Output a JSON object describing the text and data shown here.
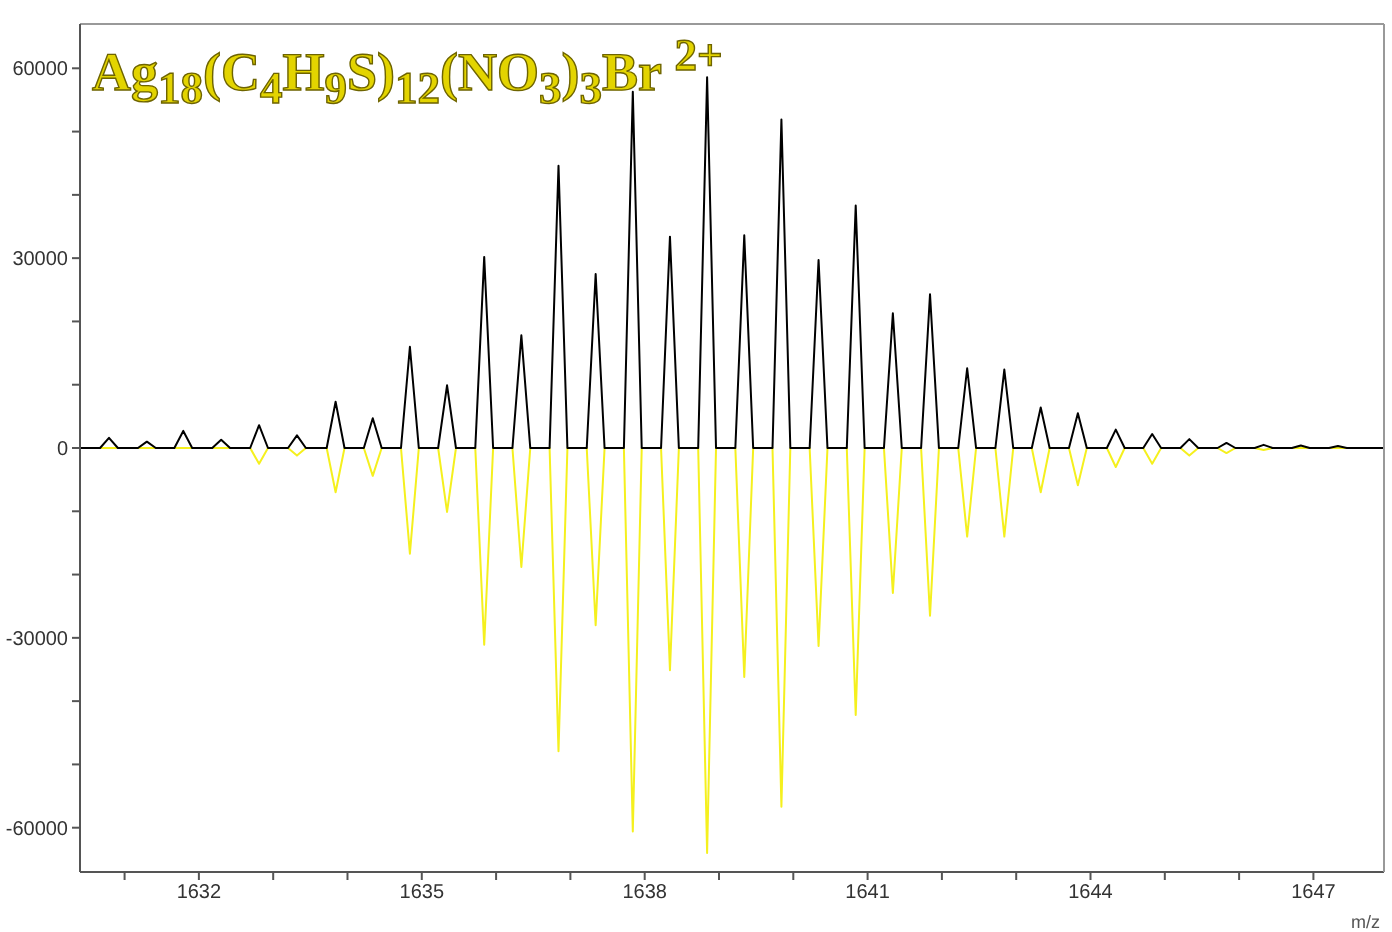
{
  "chart_data": {
    "type": "line",
    "title": "Ag$_{18}$(C$_{4}$H$_{9}$S)$_{12}$(NO$_{3}$)$_{3}$Br $^{2+}$",
    "xlabel": "m/z",
    "marker": "none",
    "xlim": [
      1630.4,
      1647.95
    ],
    "xticks": [
      {
        "value": 1631,
        "label": null
      },
      1632,
      {
        "value": 1633,
        "label": null
      },
      {
        "value": 1634,
        "label": null
      },
      1635,
      {
        "value": 1636,
        "label": null
      },
      {
        "value": 1637,
        "label": null
      },
      1638,
      {
        "value": 1639,
        "label": null
      },
      {
        "value": 1640,
        "label": null
      },
      1641,
      {
        "value": 1642,
        "label": null
      },
      {
        "value": 1643,
        "label": null
      },
      1644,
      {
        "value": 1645,
        "label": null
      },
      {
        "value": 1646,
        "label": null
      },
      1647
    ],
    "ylim": [
      -67000,
      67000
    ],
    "yticks": [
      -60000,
      {
        "value": -50000,
        "label": null
      },
      {
        "value": -40000,
        "label": null
      },
      -30000,
      {
        "value": -20000,
        "label": null
      },
      {
        "value": -10000,
        "label": null
      },
      0,
      {
        "value": 10000,
        "label": null
      },
      {
        "value": 20000,
        "label": null
      },
      30000,
      {
        "value": 40000,
        "label": null
      },
      {
        "value": 50000,
        "label": null
      },
      60000
    ],
    "series": [
      {
        "color": "#f5f01e",
        "x": [
          1630.4,
          1632.69,
          1632.81,
          1632.93,
          1633.2,
          1633.32,
          1633.44,
          1633.72,
          1633.84,
          1633.96,
          1634.22,
          1634.34,
          1634.46,
          1634.72,
          1634.84,
          1634.96,
          1635.22,
          1635.34,
          1635.46,
          1635.72,
          1635.84,
          1635.96,
          1636.22,
          1636.34,
          1636.46,
          1636.72,
          1636.84,
          1636.96,
          1637.22,
          1637.34,
          1637.46,
          1637.72,
          1637.84,
          1637.96,
          1638.22,
          1638.34,
          1638.46,
          1638.72,
          1638.84,
          1638.96,
          1639.22,
          1639.34,
          1639.46,
          1639.72,
          1639.84,
          1639.96,
          1640.22,
          1640.34,
          1640.46,
          1640.72,
          1640.84,
          1640.96,
          1641.22,
          1641.34,
          1641.46,
          1641.72,
          1641.84,
          1641.96,
          1642.22,
          1642.34,
          1642.46,
          1642.72,
          1642.84,
          1642.96,
          1643.21,
          1643.33,
          1643.45,
          1643.71,
          1643.83,
          1643.95,
          1644.22,
          1644.34,
          1644.46,
          1644.71,
          1644.83,
          1644.95,
          1645.21,
          1645.33,
          1645.45,
          1645.71,
          1645.83,
          1645.95,
          1646.21,
          1646.33,
          1646.45,
          1647.95
        ],
        "values": [
          0,
          0,
          -2500,
          0,
          0,
          -1200,
          0,
          0,
          -7000,
          0,
          0,
          -4400,
          0,
          0,
          -16700,
          0,
          0,
          -10100,
          0,
          0,
          -31100,
          0,
          0,
          -18800,
          0,
          0,
          -47900,
          0,
          0,
          -28000,
          0,
          0,
          -60600,
          0,
          0,
          -35100,
          0,
          0,
          -64000,
          0,
          0,
          -36200,
          0,
          0,
          -56700,
          0,
          0,
          -31300,
          0,
          0,
          -42200,
          0,
          0,
          -22900,
          0,
          0,
          -26500,
          0,
          0,
          -14000,
          0,
          0,
          -14000,
          0,
          0,
          -7000,
          0,
          0,
          -5900,
          0,
          0,
          -3000,
          0,
          0,
          -2500,
          0,
          0,
          -1200,
          0,
          0,
          -800,
          0,
          0,
          -300,
          0,
          0
        ]
      },
      {
        "color": "#000000",
        "x": [
          1630.4,
          1630.67,
          1630.79,
          1630.91,
          1631.18,
          1631.3,
          1631.42,
          1631.67,
          1631.79,
          1631.91,
          1632.18,
          1632.3,
          1632.42,
          1632.69,
          1632.81,
          1632.93,
          1633.2,
          1633.32,
          1633.44,
          1633.72,
          1633.84,
          1633.96,
          1634.22,
          1634.34,
          1634.46,
          1634.72,
          1634.84,
          1634.96,
          1635.22,
          1635.34,
          1635.46,
          1635.72,
          1635.84,
          1635.96,
          1636.22,
          1636.34,
          1636.46,
          1636.72,
          1636.84,
          1636.96,
          1637.22,
          1637.34,
          1637.46,
          1637.72,
          1637.84,
          1637.96,
          1638.22,
          1638.34,
          1638.46,
          1638.72,
          1638.84,
          1638.96,
          1639.22,
          1639.34,
          1639.46,
          1639.72,
          1639.84,
          1639.96,
          1640.22,
          1640.34,
          1640.46,
          1640.72,
          1640.84,
          1640.96,
          1641.22,
          1641.34,
          1641.46,
          1641.72,
          1641.84,
          1641.96,
          1642.22,
          1642.34,
          1642.46,
          1642.72,
          1642.84,
          1642.96,
          1643.21,
          1643.33,
          1643.45,
          1643.71,
          1643.83,
          1643.95,
          1644.22,
          1644.34,
          1644.46,
          1644.71,
          1644.83,
          1644.95,
          1645.21,
          1645.33,
          1645.45,
          1645.71,
          1645.83,
          1645.95,
          1646.21,
          1646.33,
          1646.45,
          1646.71,
          1646.83,
          1646.95,
          1647.21,
          1647.33,
          1647.45,
          1647.95
        ],
        "values": [
          0,
          0,
          1600,
          0,
          0,
          1000,
          0,
          0,
          2700,
          0,
          0,
          1300,
          0,
          0,
          3600,
          0,
          0,
          2000,
          0,
          0,
          7300,
          0,
          0,
          4700,
          0,
          0,
          16000,
          0,
          0,
          9900,
          0,
          0,
          30200,
          0,
          0,
          17800,
          0,
          0,
          44600,
          0,
          0,
          27500,
          0,
          0,
          56300,
          0,
          0,
          33400,
          0,
          0,
          58600,
          0,
          0,
          33600,
          0,
          0,
          51900,
          0,
          0,
          29700,
          0,
          0,
          38300,
          0,
          0,
          21300,
          0,
          0,
          24300,
          0,
          0,
          12600,
          0,
          0,
          12400,
          0,
          0,
          6400,
          0,
          0,
          5500,
          0,
          0,
          2900,
          0,
          0,
          2200,
          0,
          0,
          1400,
          0,
          0,
          800,
          0,
          0,
          500,
          0,
          0,
          400,
          0,
          0,
          300,
          0,
          0
        ]
      }
    ]
  }
}
